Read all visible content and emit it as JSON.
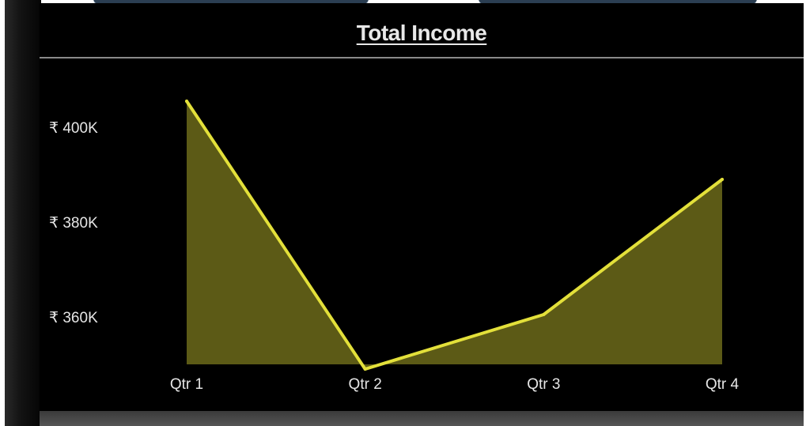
{
  "chart_data": {
    "type": "area",
    "title": "Total Income",
    "categories": [
      "Qtr 1",
      "Qtr 2",
      "Qtr 3",
      "Qtr 4"
    ],
    "series": [
      {
        "values": [
          405500,
          349000,
          360500,
          389000
        ]
      }
    ],
    "yticks": [
      {
        "value": 360000,
        "label": "₹ 360K"
      },
      {
        "value": 380000,
        "label": "₹ 380K"
      },
      {
        "value": 400000,
        "label": "₹ 400K"
      }
    ],
    "ylim": [
      350000,
      410000
    ],
    "grid": false,
    "legend": "none",
    "colors": {
      "line": "#e3e03a",
      "fill": "#5c5a16",
      "background": "#000000"
    }
  }
}
